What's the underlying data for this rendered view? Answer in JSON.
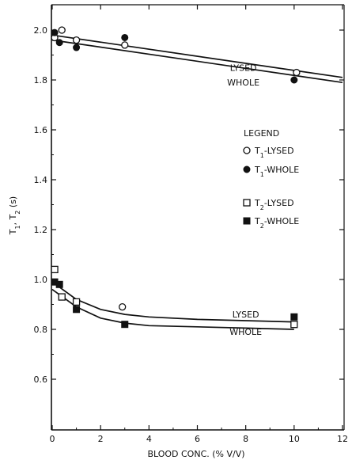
{
  "chart_data": {
    "type": "scatter",
    "xlabel": "BLOOD CONC. (% V/V)",
    "ylabel": "T1, T2 (s)",
    "xlim": [
      0,
      12
    ],
    "ylim": [
      0.4,
      2.06
    ],
    "xticks": [
      0,
      2,
      4,
      6,
      8,
      10,
      12
    ],
    "yticks": [
      0.6,
      0.8,
      1.0,
      1.2,
      1.4,
      1.6,
      1.8,
      2.0
    ],
    "ytick_labels": [
      "0.6",
      "0.8",
      "1.0",
      "1.2",
      "1.4",
      "1.6",
      "1.8",
      "2.0"
    ],
    "legend": {
      "title": "LEGEND",
      "position": "right-center",
      "entries": [
        {
          "label": "T1-LYSED",
          "marker": "open-circle"
        },
        {
          "label": "T1-WHOLE",
          "marker": "filled-circle"
        },
        {
          "label": "T2-LYSED",
          "marker": "open-square"
        },
        {
          "label": "T2-WHOLE",
          "marker": "filled-square"
        }
      ]
    },
    "series": [
      {
        "name": "T1-LYSED",
        "marker": "open-circle",
        "x": [
          0.1,
          0.4,
          1.0,
          3.0,
          10.1
        ],
        "y": [
          1.97,
          2.0,
          1.96,
          1.94,
          1.83
        ]
      },
      {
        "name": "T1-WHOLE",
        "marker": "filled-circle",
        "x": [
          0.1,
          0.3,
          1.0,
          3.0,
          10.0
        ],
        "y": [
          1.99,
          1.95,
          1.93,
          1.97,
          1.8
        ]
      },
      {
        "name": "T2-LYSED",
        "marker": "open-square",
        "x": [
          0.1,
          0.4,
          1.0,
          10.0
        ],
        "y": [
          1.04,
          0.93,
          0.91,
          0.82
        ]
      },
      {
        "name": "T2-WHOLE",
        "marker": "filled-square",
        "x": [
          0.1,
          0.3,
          1.0,
          3.0,
          10.0
        ],
        "y": [
          0.99,
          0.98,
          0.88,
          0.82,
          0.85
        ]
      },
      {
        "name": "T2-LYSED",
        "marker": "open-circle",
        "x": [
          2.9
        ],
        "y": [
          0.89
        ]
      }
    ],
    "fit_curves": [
      {
        "label": "LYSED",
        "x": [
          0,
          12
        ],
        "y": [
          1.98,
          1.81
        ]
      },
      {
        "label": "WHOLE",
        "x": [
          0,
          12
        ],
        "y": [
          1.96,
          1.79
        ]
      },
      {
        "label": "LYSED",
        "x": [
          0,
          1,
          2,
          3,
          4,
          6,
          8,
          10
        ],
        "y": [
          0.99,
          0.92,
          0.88,
          0.86,
          0.85,
          0.84,
          0.835,
          0.83
        ]
      },
      {
        "label": "WHOLE",
        "x": [
          0,
          1,
          2,
          3,
          4,
          6,
          8,
          10
        ],
        "y": [
          0.96,
          0.89,
          0.845,
          0.825,
          0.815,
          0.81,
          0.805,
          0.8
        ]
      }
    ],
    "curve_labels": [
      {
        "text": "LYSED",
        "x": 7.9,
        "y": 1.85
      },
      {
        "text": "WHOLE",
        "x": 7.9,
        "y": 1.79
      },
      {
        "text": "LYSED",
        "x": 8.0,
        "y": 0.86
      },
      {
        "text": "WHOLE",
        "x": 8.0,
        "y": 0.79
      }
    ],
    "grid": false
  }
}
